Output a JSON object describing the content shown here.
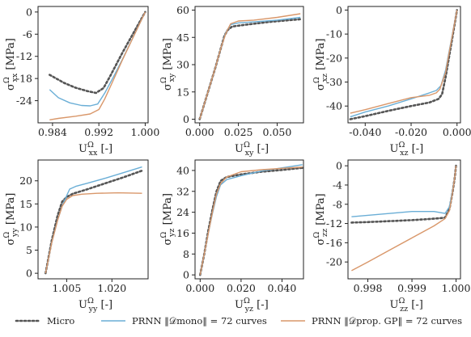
{
  "colors": {
    "micro": "#555555",
    "mono": "#6aaed6",
    "gp": "#d9976a",
    "axis": "#222222"
  },
  "legend": [
    {
      "key": "micro",
      "label": "Micro",
      "style": "dotted"
    },
    {
      "key": "mono",
      "label": "PRNN ‖𝒟mono‖ = 72 curves",
      "style": "solid"
    },
    {
      "key": "gp",
      "label": "PRNN ‖𝒟prop. GP‖ = 72 curves",
      "style": "solid"
    }
  ],
  "chart_data": [
    {
      "type": "line",
      "xlabel": "U_xx^Ω [-]",
      "ylabel": "σ_xx^Ω [MPa]",
      "xlim": [
        0.9815,
        1.0005
      ],
      "ylim": [
        -30,
        1.5
      ],
      "xticks": [
        0.984,
        0.992,
        1.0
      ],
      "xtick_labels": [
        "0.984",
        "0.992",
        "1.000"
      ],
      "yticks": [
        0,
        -6,
        -12,
        -18,
        -24
      ],
      "ytick_labels": [
        "0",
        "-6",
        "-12",
        "-18",
        "-24"
      ],
      "series": [
        {
          "key": "micro",
          "x": [
            0.9835,
            0.986,
            0.988,
            0.99,
            0.9915,
            0.9928,
            0.994,
            0.996,
            0.998,
            1.0
          ],
          "y": [
            -17,
            -19.2,
            -20.5,
            -21.4,
            -21.9,
            -20.6,
            -17.2,
            -11.2,
            -5.6,
            0
          ]
        },
        {
          "key": "mono",
          "x": [
            0.9835,
            0.985,
            0.987,
            0.989,
            0.9905,
            0.9918,
            0.993,
            0.9945,
            0.996,
            0.998,
            1.0
          ],
          "y": [
            -21,
            -23.2,
            -24.6,
            -25.3,
            -25.4,
            -24.9,
            -22.0,
            -17.6,
            -13.0,
            -6.6,
            0
          ]
        },
        {
          "key": "gp",
          "x": [
            0.9835,
            0.985,
            0.988,
            0.9905,
            0.992,
            0.993,
            0.9945,
            0.996,
            0.998,
            1.0
          ],
          "y": [
            -29.2,
            -28.8,
            -28.2,
            -27.6,
            -26.4,
            -23.6,
            -18.4,
            -13.2,
            -6.6,
            0
          ]
        }
      ]
    },
    {
      "type": "line",
      "xlabel": "U_xy^Ω [-]",
      "ylabel": "σ_xy^Ω [MPa]",
      "xlim": [
        -0.003,
        0.067
      ],
      "ylim": [
        -2,
        62
      ],
      "xticks": [
        0.0,
        0.025,
        0.05
      ],
      "xtick_labels": [
        "0.000",
        "0.025",
        "0.050"
      ],
      "yticks": [
        0,
        15,
        30,
        45,
        60
      ],
      "ytick_labels": [
        "0",
        "15",
        "30",
        "45",
        "60"
      ],
      "series": [
        {
          "key": "micro",
          "x": [
            0.0,
            0.005,
            0.01,
            0.014,
            0.016,
            0.018,
            0.021,
            0.03,
            0.045,
            0.065
          ],
          "y": [
            0,
            14,
            28,
            40,
            46,
            49,
            51,
            52,
            53.5,
            55
          ]
        },
        {
          "key": "mono",
          "x": [
            0.0,
            0.005,
            0.01,
            0.014,
            0.017,
            0.02,
            0.025,
            0.035,
            0.05,
            0.065
          ],
          "y": [
            0,
            14,
            28,
            40,
            48,
            52,
            53,
            53.5,
            54.5,
            56
          ]
        },
        {
          "key": "gp",
          "x": [
            0.0,
            0.005,
            0.01,
            0.014,
            0.017,
            0.02,
            0.025,
            0.035,
            0.05,
            0.065
          ],
          "y": [
            0,
            14,
            28,
            40,
            47.5,
            52.5,
            54,
            54.5,
            56,
            58
          ]
        }
      ]
    },
    {
      "type": "line",
      "xlabel": "U_xz^Ω [-]",
      "ylabel": "σ_xz^Ω [MPa]",
      "xlim": [
        -0.0475,
        0.0015
      ],
      "ylim": [
        -47,
        1.5
      ],
      "xticks": [
        -0.04,
        -0.02,
        0.0
      ],
      "xtick_labels": [
        "-0.040",
        "-0.020",
        "0.000"
      ],
      "yticks": [
        0,
        -10,
        -20,
        -30,
        -40
      ],
      "ytick_labels": [
        "0",
        "-10",
        "-20",
        "-30",
        "-40"
      ],
      "series": [
        {
          "key": "micro",
          "x": [
            -0.0465,
            -0.04,
            -0.03,
            -0.02,
            -0.012,
            -0.008,
            -0.0065,
            -0.005,
            -0.003,
            0.0
          ],
          "y": [
            -45.5,
            -44.2,
            -42,
            -40,
            -38.5,
            -37,
            -35,
            -28,
            -17,
            0
          ]
        },
        {
          "key": "mono",
          "x": [
            -0.0465,
            -0.04,
            -0.03,
            -0.02,
            -0.012,
            -0.009,
            -0.007,
            -0.005,
            -0.003,
            0.0
          ],
          "y": [
            -44.5,
            -42.5,
            -40,
            -37,
            -34.5,
            -33.5,
            -31.5,
            -25,
            -15,
            0
          ]
        },
        {
          "key": "gp",
          "x": [
            -0.0465,
            -0.04,
            -0.03,
            -0.02,
            -0.012,
            -0.009,
            -0.0075,
            -0.005,
            -0.003,
            0.0
          ],
          "y": [
            -43,
            -41.5,
            -39,
            -36.5,
            -35.5,
            -34.5,
            -33,
            -26,
            -15.5,
            0
          ]
        }
      ]
    },
    {
      "type": "line",
      "xlabel": "U_yy^Ω [-]",
      "ylabel": "σ_yy^Ω [MPa]",
      "xlim": [
        0.9955,
        1.032
      ],
      "ylim": [
        -1.2,
        24.5
      ],
      "xticks": [
        1.005,
        1.02
      ],
      "xtick_labels": [
        "1.005",
        "1.020"
      ],
      "yticks": [
        0,
        5,
        10,
        15,
        20
      ],
      "ytick_labels": [
        "0",
        "5",
        "10",
        "15",
        "20"
      ],
      "series": [
        {
          "key": "micro",
          "x": [
            0.998,
            1.0,
            1.002,
            1.0035,
            1.005,
            1.007,
            1.012,
            1.018,
            1.024,
            1.03
          ],
          "y": [
            0,
            7,
            12.5,
            15.5,
            16.5,
            17.2,
            18.2,
            19.5,
            20.8,
            22.2
          ]
        },
        {
          "key": "mono",
          "x": [
            0.998,
            1.0,
            1.002,
            1.0035,
            1.005,
            1.006,
            1.008,
            1.012,
            1.018,
            1.024,
            1.03
          ],
          "y": [
            0,
            6.5,
            11.5,
            14.5,
            16.8,
            18.2,
            18.8,
            19.5,
            20.6,
            21.8,
            23
          ]
        },
        {
          "key": "gp",
          "x": [
            0.998,
            1.0,
            1.002,
            1.0035,
            1.005,
            1.007,
            1.01,
            1.015,
            1.022,
            1.03
          ],
          "y": [
            0,
            6.5,
            11.5,
            14.5,
            16,
            16.8,
            17.1,
            17.3,
            17.4,
            17.3
          ]
        }
      ]
    },
    {
      "type": "line",
      "xlabel": "U_yz^Ω [-]",
      "ylabel": "σ_yz^Ω [MPa]",
      "xlim": [
        -0.0025,
        0.0505
      ],
      "ylim": [
        -1.5,
        44
      ],
      "xticks": [
        0.0,
        0.02,
        0.04
      ],
      "xtick_labels": [
        "0.000",
        "0.020",
        "0.040"
      ],
      "yticks": [
        0,
        8,
        16,
        24,
        32,
        40
      ],
      "ytick_labels": [
        "0",
        "8",
        "16",
        "24",
        "32",
        "40"
      ],
      "series": [
        {
          "key": "micro",
          "x": [
            0.0,
            0.002,
            0.004,
            0.006,
            0.008,
            0.01,
            0.013,
            0.02,
            0.03,
            0.04,
            0.05
          ],
          "y": [
            0,
            8,
            17,
            25,
            32,
            36,
            37.5,
            38.5,
            39.5,
            40.2,
            41
          ]
        },
        {
          "key": "mono",
          "x": [
            0.0,
            0.002,
            0.004,
            0.006,
            0.008,
            0.01,
            0.013,
            0.02,
            0.03,
            0.04,
            0.05
          ],
          "y": [
            0,
            8,
            16,
            23.5,
            30,
            34.5,
            36.5,
            38,
            39.8,
            41,
            42.2
          ]
        },
        {
          "key": "gp",
          "x": [
            0.0,
            0.002,
            0.004,
            0.006,
            0.008,
            0.01,
            0.013,
            0.02,
            0.03,
            0.04,
            0.05
          ],
          "y": [
            0,
            8,
            16,
            24,
            31,
            35,
            37.5,
            39.5,
            40.3,
            40.8,
            41.3
          ]
        }
      ]
    },
    {
      "type": "line",
      "xlabel": "U_zz^Ω [-]",
      "ylabel": "σ_zz^Ω [MPa]",
      "xlim": [
        0.99755,
        1.0001
      ],
      "ylim": [
        -23.5,
        1.2
      ],
      "xticks": [
        0.998,
        0.999,
        1.0
      ],
      "xtick_labels": [
        "0.998",
        "0.999",
        "1.000"
      ],
      "yticks": [
        0,
        -4,
        -8,
        -12,
        -16,
        -20
      ],
      "ytick_labels": [
        "0",
        "-4",
        "-8",
        "-12",
        "-16",
        "-20"
      ],
      "series": [
        {
          "key": "micro",
          "x": [
            0.99763,
            0.998,
            0.9985,
            0.999,
            0.9995,
            0.99975,
            0.99985,
            0.99992,
            0.99997,
            1.0
          ],
          "y": [
            -11.8,
            -11.7,
            -11.5,
            -11.3,
            -11.0,
            -10.8,
            -9.0,
            -5.5,
            -2.5,
            0
          ]
        },
        {
          "key": "mono",
          "x": [
            0.99763,
            0.998,
            0.9985,
            0.999,
            0.9995,
            0.99975,
            0.99985,
            0.99992,
            0.99997,
            1.0
          ],
          "y": [
            -10.6,
            -10.3,
            -9.9,
            -9.5,
            -9.5,
            -9.9,
            -8.5,
            -5.2,
            -2.3,
            0
          ]
        },
        {
          "key": "gp",
          "x": [
            0.99763,
            0.998,
            0.9985,
            0.999,
            0.9995,
            0.99975,
            0.99985,
            0.99992,
            0.99997,
            1.0
          ],
          "y": [
            -21.8,
            -20.0,
            -17.5,
            -15.0,
            -12.5,
            -11.0,
            -9.3,
            -5.5,
            -2.4,
            0
          ]
        }
      ]
    }
  ]
}
